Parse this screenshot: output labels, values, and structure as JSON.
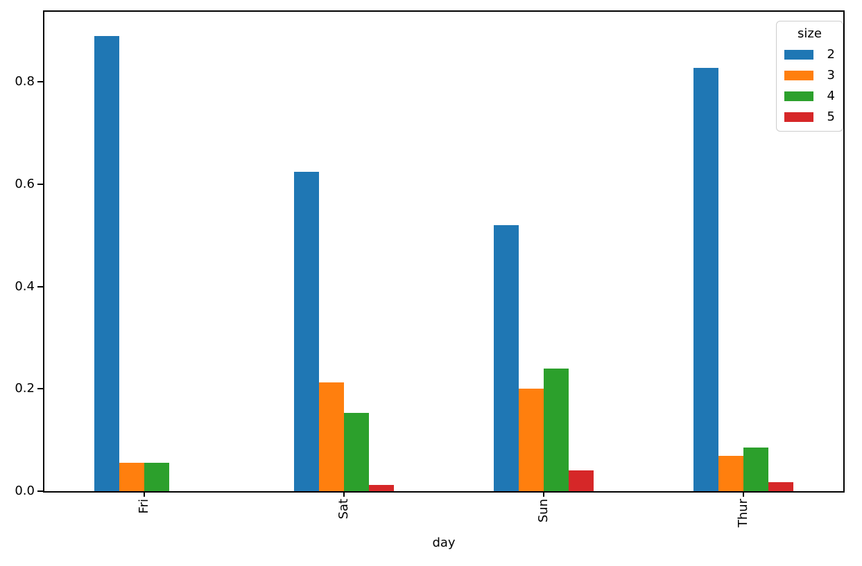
{
  "chart_data": {
    "type": "bar",
    "title": "",
    "xlabel": "day",
    "ylabel": "",
    "categories": [
      "Fri",
      "Sat",
      "Sun",
      "Thur"
    ],
    "series": [
      {
        "name": "2",
        "color": "#1f77b4",
        "values": [
          0.889,
          0.624,
          0.52,
          0.828
        ]
      },
      {
        "name": "3",
        "color": "#ff7f0e",
        "values": [
          0.056,
          0.212,
          0.2,
          0.069
        ]
      },
      {
        "name": "4",
        "color": "#2ca02c",
        "values": [
          0.056,
          0.153,
          0.24,
          0.086
        ]
      },
      {
        "name": "5",
        "color": "#d62728",
        "values": [
          0.0,
          0.012,
          0.04,
          0.017
        ]
      }
    ],
    "y_ticks": [
      {
        "label": "0.0",
        "value": 0.0
      },
      {
        "label": "0.2",
        "value": 0.2
      },
      {
        "label": "0.4",
        "value": 0.4
      },
      {
        "label": "0.6",
        "value": 0.6
      },
      {
        "label": "0.8",
        "value": 0.8
      }
    ],
    "ylim": [
      0,
      0.937
    ],
    "grid": false,
    "legend": {
      "title": "size",
      "position": "upper right"
    }
  }
}
